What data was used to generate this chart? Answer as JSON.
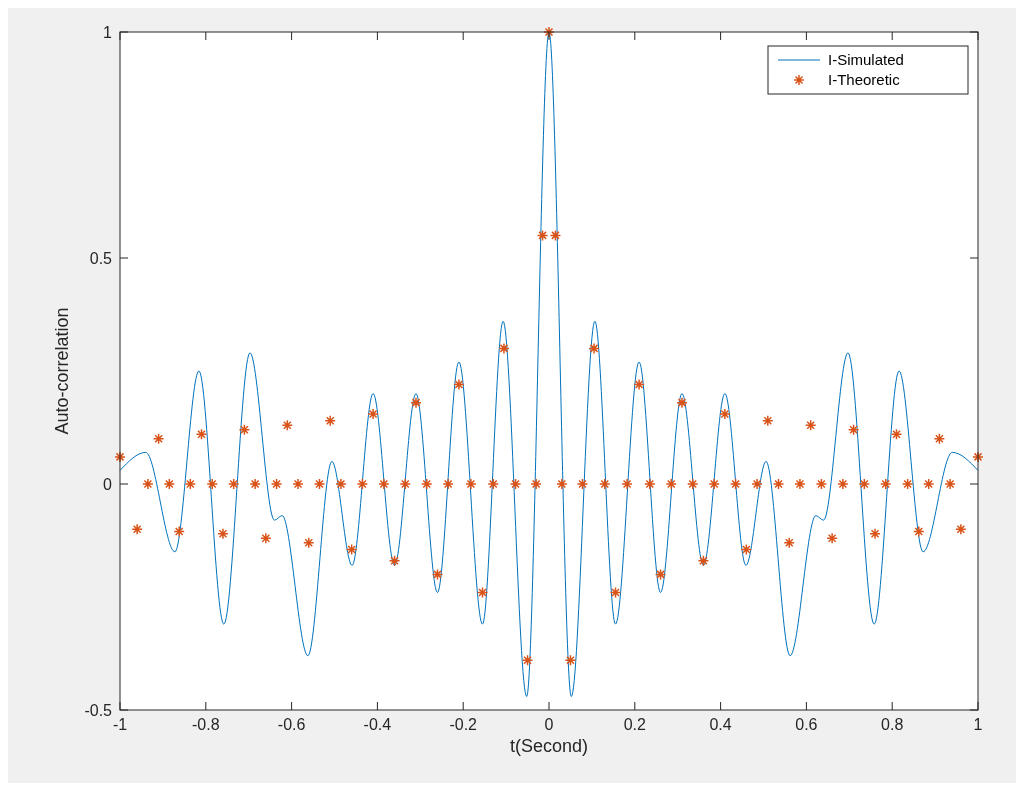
{
  "chart_data": {
    "type": "line",
    "xlabel": "t(Second)",
    "ylabel": "Auto-correlation",
    "xlim": [
      -1,
      1
    ],
    "ylim": [
      -0.5,
      1
    ],
    "xticks": [
      -1,
      -0.8,
      -0.6,
      -0.4,
      -0.2,
      0,
      0.2,
      0.4,
      0.6,
      0.8,
      1
    ],
    "yticks": [
      -0.5,
      0,
      0.5,
      1
    ],
    "grid": false,
    "legend": "top right",
    "series": [
      {
        "name": "I-Simulated",
        "color": "#0072bd",
        "marker": "none",
        "line_style": "solid",
        "x": [
          -1,
          -0.94,
          -0.872,
          -0.816,
          -0.758,
          -0.697,
          -0.64,
          -0.622,
          -0.562,
          -0.506,
          -0.459,
          -0.41,
          -0.36,
          -0.31,
          -0.26,
          -0.21,
          -0.155,
          -0.107,
          -0.052,
          0,
          0.052,
          0.107,
          0.155,
          0.21,
          0.26,
          0.31,
          0.36,
          0.41,
          0.459,
          0.506,
          0.562,
          0.622,
          0.64,
          0.697,
          0.758,
          0.816,
          0.872,
          0.94,
          1
        ],
        "values": [
          0.03,
          0.07,
          -0.15,
          0.25,
          -0.31,
          0.29,
          -0.08,
          -0.07,
          -0.38,
          0.05,
          -0.18,
          0.2,
          -0.18,
          0.2,
          -0.24,
          0.27,
          -0.31,
          0.36,
          -0.47,
          1,
          -0.47,
          0.36,
          -0.31,
          0.27,
          -0.24,
          0.2,
          -0.18,
          0.2,
          -0.18,
          0.05,
          -0.38,
          -0.07,
          -0.08,
          0.29,
          -0.31,
          0.25,
          -0.15,
          0.07,
          0.03
        ]
      },
      {
        "name": "I-Theoretic",
        "type": "scatter",
        "color": "#d95319",
        "marker": "cross",
        "x": [
          -1,
          -0.96,
          -0.935,
          -0.91,
          -0.885,
          -0.862,
          -0.836,
          -0.81,
          -0.785,
          -0.76,
          -0.735,
          -0.71,
          -0.685,
          -0.66,
          -0.635,
          -0.61,
          -0.585,
          -0.56,
          -0.535,
          -0.51,
          -0.485,
          -0.46,
          -0.435,
          -0.41,
          -0.385,
          -0.36,
          -0.335,
          -0.31,
          -0.285,
          -0.26,
          -0.235,
          -0.21,
          -0.182,
          -0.155,
          -0.13,
          -0.105,
          -0.078,
          -0.05,
          -0.03,
          -0.015,
          0,
          0.015,
          0.03,
          0.05,
          0.078,
          0.105,
          0.13,
          0.155,
          0.182,
          0.21,
          0.235,
          0.26,
          0.285,
          0.31,
          0.335,
          0.36,
          0.385,
          0.41,
          0.435,
          0.46,
          0.485,
          0.51,
          0.535,
          0.56,
          0.585,
          0.61,
          0.635,
          0.66,
          0.685,
          0.71,
          0.735,
          0.76,
          0.785,
          0.81,
          0.836,
          0.862,
          0.885,
          0.91,
          0.935,
          0.96,
          1
        ],
        "values": [
          0.06,
          -0.1,
          0,
          0.1,
          0,
          -0.105,
          0,
          0.11,
          0,
          -0.11,
          0,
          0.12,
          0,
          -0.12,
          0,
          0.13,
          0,
          -0.13,
          0,
          0.14,
          0,
          -0.145,
          0,
          0.155,
          0,
          -0.17,
          0,
          0.18,
          0,
          -0.2,
          0,
          0.22,
          0,
          -0.24,
          0,
          0.3,
          0,
          -0.39,
          0,
          0.55,
          1,
          0.55,
          0,
          -0.39,
          0,
          0.3,
          0,
          -0.24,
          0,
          0.22,
          0,
          -0.2,
          0,
          0.18,
          0,
          -0.17,
          0,
          0.155,
          0,
          -0.145,
          0,
          0.14,
          0,
          -0.13,
          0,
          0.13,
          0,
          -0.12,
          0,
          0.12,
          0,
          -0.11,
          0,
          0.11,
          0,
          -0.105,
          0,
          0.1,
          0,
          -0.1,
          0.06
        ]
      }
    ]
  }
}
